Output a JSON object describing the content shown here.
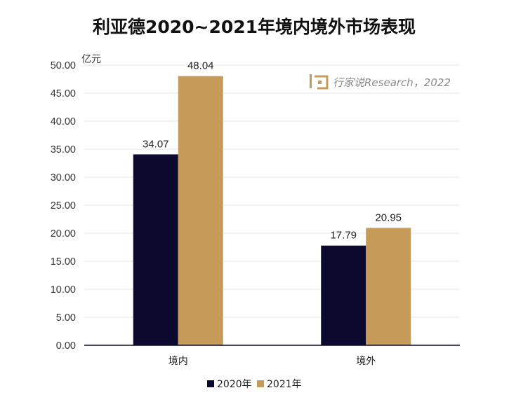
{
  "chart_data": {
    "type": "bar",
    "title": "利亚德2020~2021年境内境外市场表现",
    "unit_label": "亿元",
    "categories": [
      "境内",
      "境外"
    ],
    "series": [
      {
        "name": "2020年",
        "values": [
          34.07,
          17.79
        ],
        "labels": [
          "34.07",
          "17.79"
        ],
        "color": "#0b0a2e"
      },
      {
        "name": "2021年",
        "values": [
          48.04,
          20.95
        ],
        "labels": [
          "48.04",
          "20.95"
        ],
        "color": "#c69b5a"
      }
    ],
    "ylim": [
      0,
      50
    ],
    "yticks": [
      "0.00",
      "5.00",
      "10.00",
      "15.00",
      "20.00",
      "25.00",
      "30.00",
      "35.00",
      "40.00",
      "45.00",
      "50.00"
    ],
    "grid": true,
    "legend_position": "bottom",
    "axis_color": "#0b0a2e",
    "grid_color": "#e6e6e6"
  },
  "watermark": {
    "text": "行家说Research，2022",
    "logo_color": "#c69b5a"
  }
}
